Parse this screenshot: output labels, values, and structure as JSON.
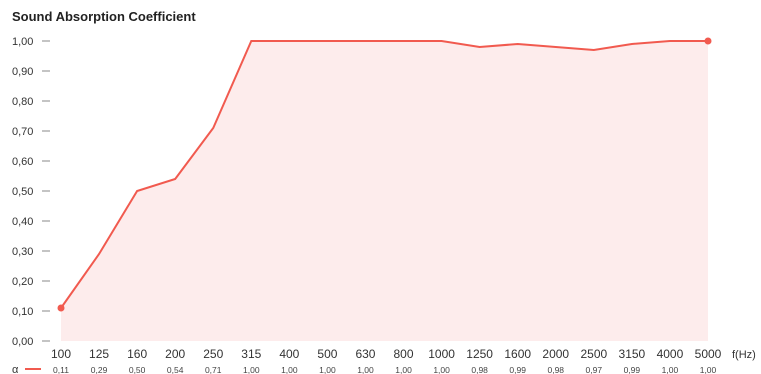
{
  "chart_data": {
    "type": "area",
    "title": "Sound Absorption Coefficient",
    "xlabel": "f(Hz)",
    "series_label": "α",
    "categories": [
      "100",
      "125",
      "160",
      "200",
      "250",
      "315",
      "400",
      "500",
      "630",
      "800",
      "1000",
      "1250",
      "1600",
      "2000",
      "2500",
      "3150",
      "4000",
      "5000"
    ],
    "values": [
      0.11,
      0.29,
      0.5,
      0.54,
      0.71,
      1.0,
      1.0,
      1.0,
      1.0,
      1.0,
      1.0,
      0.98,
      0.99,
      0.98,
      0.97,
      0.99,
      1.0,
      1.0
    ],
    "value_labels": [
      "0,11",
      "0,29",
      "0,50",
      "0,54",
      "0,71",
      "1,00",
      "1,00",
      "1,00",
      "1,00",
      "1,00",
      "1,00",
      "0,98",
      "0,99",
      "0,98",
      "0,97",
      "0,99",
      "1,00",
      "1,00"
    ],
    "y_ticks": [
      {
        "value": 0.0,
        "label": "0,00"
      },
      {
        "value": 0.1,
        "label": "0,10"
      },
      {
        "value": 0.2,
        "label": "0,20"
      },
      {
        "value": 0.3,
        "label": "0,30"
      },
      {
        "value": 0.4,
        "label": "0,40"
      },
      {
        "value": 0.5,
        "label": "0,50"
      },
      {
        "value": 0.6,
        "label": "0,60"
      },
      {
        "value": 0.7,
        "label": "0,70"
      },
      {
        "value": 0.8,
        "label": "0,80"
      },
      {
        "value": 0.9,
        "label": "0,90"
      },
      {
        "value": 1.0,
        "label": "1,00"
      }
    ],
    "ylim": [
      0,
      1.0
    ],
    "grid": false,
    "line_color": "#f15a4f",
    "fill_color": "#fdecec"
  }
}
